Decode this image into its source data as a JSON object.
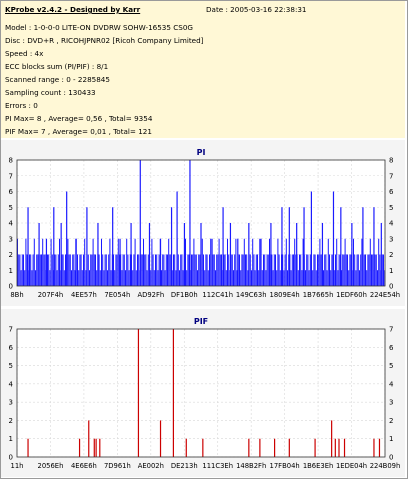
{
  "header": {
    "app_title": "KProbe v2.4.2 - Designed by Karr",
    "date": "Date : 2005-03-16 22:38:31"
  },
  "info_lines": [
    "Model : 1-0-0-0 LITE-ON DVDRW SOHW-16535 CS0G",
    "Disc : DVD+R , RICOHJPNR02 [Ricoh Company Limited]",
    "Speed : 4x",
    "ECC blocks sum (PI/PIF) : 8/1",
    "Scanned range : 0 - 2285845",
    "Sampling count : 130433",
    "Errors : 0",
    "PI Max= 8 , Average= 0,56 , Total= 9354",
    "PIF Max= 7 , Average= 0,01 , Total= 121"
  ],
  "chart_data": [
    {
      "type": "bar",
      "title": "PI",
      "ylim": [
        0,
        8
      ],
      "yticks": [
        0,
        1,
        2,
        3,
        4,
        5,
        6,
        7,
        8
      ],
      "xticks": [
        "8Bh",
        "207F4h",
        "4EE57h",
        "7E054h",
        "AD92Fh",
        "DF1B0h",
        "112C41h",
        "149C63h",
        "1809E4h",
        "1B7665h",
        "1EDF60h",
        "224E54h"
      ],
      "color": "#1a1aff",
      "baseline": 2,
      "spikes": [
        {
          "x": 0.03,
          "y": 5
        },
        {
          "x": 0.06,
          "y": 4
        },
        {
          "x": 0.08,
          "y": 3
        },
        {
          "x": 0.1,
          "y": 5
        },
        {
          "x": 0.12,
          "y": 4
        },
        {
          "x": 0.135,
          "y": 6
        },
        {
          "x": 0.16,
          "y": 3
        },
        {
          "x": 0.19,
          "y": 5
        },
        {
          "x": 0.22,
          "y": 4
        },
        {
          "x": 0.26,
          "y": 5
        },
        {
          "x": 0.28,
          "y": 3
        },
        {
          "x": 0.31,
          "y": 4
        },
        {
          "x": 0.335,
          "y": 8
        },
        {
          "x": 0.36,
          "y": 4
        },
        {
          "x": 0.39,
          "y": 3
        },
        {
          "x": 0.42,
          "y": 5
        },
        {
          "x": 0.435,
          "y": 6
        },
        {
          "x": 0.455,
          "y": 4
        },
        {
          "x": 0.47,
          "y": 8
        },
        {
          "x": 0.5,
          "y": 4
        },
        {
          "x": 0.53,
          "y": 3
        },
        {
          "x": 0.56,
          "y": 5
        },
        {
          "x": 0.58,
          "y": 4
        },
        {
          "x": 0.6,
          "y": 3
        },
        {
          "x": 0.63,
          "y": 4
        },
        {
          "x": 0.66,
          "y": 3
        },
        {
          "x": 0.69,
          "y": 4
        },
        {
          "x": 0.72,
          "y": 5
        },
        {
          "x": 0.74,
          "y": 5
        },
        {
          "x": 0.76,
          "y": 4
        },
        {
          "x": 0.78,
          "y": 5
        },
        {
          "x": 0.8,
          "y": 6
        },
        {
          "x": 0.83,
          "y": 4
        },
        {
          "x": 0.86,
          "y": 6
        },
        {
          "x": 0.88,
          "y": 5
        },
        {
          "x": 0.91,
          "y": 4
        },
        {
          "x": 0.94,
          "y": 5
        },
        {
          "x": 0.97,
          "y": 5
        },
        {
          "x": 0.99,
          "y": 4
        }
      ]
    },
    {
      "type": "bar",
      "title": "PIF",
      "ylim": [
        0,
        7
      ],
      "yticks": [
        0,
        1,
        2,
        3,
        4,
        5,
        6,
        7
      ],
      "xticks": [
        "11h",
        "2056Eh",
        "4E6E6h",
        "7D961h",
        "AE002h",
        "DE213h",
        "111C3Eh",
        "148B2Fh",
        "17FB04h",
        "1B6E3Eh",
        "1EDE04h",
        "224B09h"
      ],
      "color": "#cc0000",
      "spikes": [
        {
          "x": 0.03,
          "y": 1
        },
        {
          "x": 0.17,
          "y": 1
        },
        {
          "x": 0.195,
          "y": 2
        },
        {
          "x": 0.21,
          "y": 1
        },
        {
          "x": 0.215,
          "y": 1
        },
        {
          "x": 0.225,
          "y": 1
        },
        {
          "x": 0.33,
          "y": 7
        },
        {
          "x": 0.39,
          "y": 2
        },
        {
          "x": 0.425,
          "y": 7
        },
        {
          "x": 0.46,
          "y": 1
        },
        {
          "x": 0.505,
          "y": 1
        },
        {
          "x": 0.63,
          "y": 1
        },
        {
          "x": 0.66,
          "y": 1
        },
        {
          "x": 0.7,
          "y": 1
        },
        {
          "x": 0.74,
          "y": 1
        },
        {
          "x": 0.81,
          "y": 1
        },
        {
          "x": 0.855,
          "y": 2
        },
        {
          "x": 0.865,
          "y": 1
        },
        {
          "x": 0.875,
          "y": 1
        },
        {
          "x": 0.89,
          "y": 1
        },
        {
          "x": 0.97,
          "y": 1
        },
        {
          "x": 0.985,
          "y": 1
        }
      ]
    }
  ]
}
